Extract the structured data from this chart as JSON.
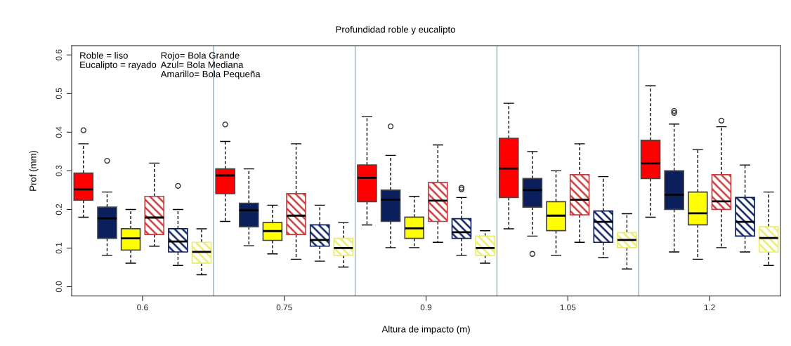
{
  "chart_data": {
    "type": "box",
    "title": "Profundidad roble y eucalipto",
    "xlabel": "Altura de impacto (m)",
    "ylabel": "Prof (mm)",
    "x": [
      0.6,
      0.75,
      0.9,
      1.05,
      1.2
    ],
    "xlim": [
      0.525,
      1.275
    ],
    "xticks": [
      0.6,
      0.75,
      0.9,
      1.05,
      1.2
    ],
    "ylim": [
      -0.024,
      0.624
    ],
    "yticks": [
      {
        "value": 0,
        "label": "0.0"
      },
      0.1,
      0.2,
      0.3,
      0.4,
      0.5,
      0.6
    ],
    "ref_lines": [
      {
        "axis": "x",
        "value": 0.675,
        "color": "#8db4cc"
      },
      {
        "axis": "x",
        "value": 0.825,
        "color": "#8db4cc"
      },
      {
        "axis": "x",
        "value": 0.975,
        "color": "#8db4cc"
      },
      {
        "axis": "x",
        "value": 1.125,
        "color": "#8db4cc"
      }
    ],
    "annotations": [
      "Roble = liso\nEucalipto = rayado",
      "Rojo= Bola Grande\nAzul= Bola Mediana\nAmarillo= Bola Pequeña"
    ],
    "series": [
      {
        "color": "#ff0000",
        "boxes": [
          {
            "low": 0.18,
            "q1": 0.224,
            "median": 0.252,
            "q3": 0.294,
            "high": 0.37,
            "outliers": [
              0.405
            ]
          },
          {
            "low": 0.169,
            "q1": 0.241,
            "median": 0.288,
            "q3": 0.305,
            "high": 0.376,
            "outliers": [
              0.42
            ]
          },
          {
            "low": 0.16,
            "q1": 0.22,
            "median": 0.282,
            "q3": 0.315,
            "high": 0.44
          },
          {
            "low": 0.15,
            "q1": 0.231,
            "median": 0.306,
            "q3": 0.384,
            "high": 0.475
          },
          {
            "low": 0.18,
            "q1": 0.28,
            "median": 0.319,
            "q3": 0.379,
            "high": 0.52
          }
        ]
      },
      {
        "color": "#0a1f5c",
        "boxes": [
          {
            "low": 0.081,
            "q1": 0.125,
            "median": 0.177,
            "q3": 0.206,
            "high": 0.245,
            "outliers": [
              0.326
            ]
          },
          {
            "low": 0.106,
            "q1": 0.155,
            "median": 0.198,
            "q3": 0.216,
            "high": 0.305
          },
          {
            "low": 0.101,
            "q1": 0.169,
            "median": 0.225,
            "q3": 0.25,
            "high": 0.34,
            "outliers": [
              0.415
            ]
          },
          {
            "low": 0.131,
            "q1": 0.206,
            "median": 0.25,
            "q3": 0.28,
            "high": 0.35,
            "outliers": [
              0.085
            ]
          },
          {
            "low": 0.09,
            "q1": 0.2,
            "median": 0.238,
            "q3": 0.3,
            "high": 0.421,
            "outliers": [
              0.45,
              0.455
            ]
          }
        ]
      },
      {
        "color": "#ffff00",
        "boxes": [
          {
            "low": 0.061,
            "q1": 0.095,
            "median": 0.125,
            "q3": 0.15,
            "high": 0.2
          },
          {
            "low": 0.085,
            "q1": 0.12,
            "median": 0.144,
            "q3": 0.166,
            "high": 0.211
          },
          {
            "low": 0.101,
            "q1": 0.125,
            "median": 0.151,
            "q3": 0.18,
            "high": 0.234
          },
          {
            "low": 0.081,
            "q1": 0.145,
            "median": 0.184,
            "q3": 0.22,
            "high": 0.3
          },
          {
            "low": 0.071,
            "q1": 0.16,
            "median": 0.19,
            "q3": 0.245,
            "high": 0.355
          }
        ]
      },
      {
        "color": "#c83c3c",
        "boxes": [
          {
            "low": 0.105,
            "q1": 0.135,
            "median": 0.179,
            "q3": 0.234,
            "high": 0.32
          },
          {
            "low": 0.071,
            "q1": 0.135,
            "median": 0.184,
            "q3": 0.241,
            "high": 0.37
          },
          {
            "low": 0.115,
            "q1": 0.169,
            "median": 0.223,
            "q3": 0.27,
            "high": 0.367
          },
          {
            "low": 0.115,
            "q1": 0.186,
            "median": 0.225,
            "q3": 0.29,
            "high": 0.37
          },
          {
            "low": 0.101,
            "q1": 0.2,
            "median": 0.221,
            "q3": 0.29,
            "high": 0.414,
            "outliers": [
              0.43
            ]
          }
        ]
      },
      {
        "color": "#0a1f5c",
        "boxes": [
          {
            "low": 0.055,
            "q1": 0.09,
            "median": 0.117,
            "q3": 0.15,
            "high": 0.2,
            "outliers": [
              0.261
            ]
          },
          {
            "low": 0.066,
            "q1": 0.105,
            "median": 0.121,
            "q3": 0.16,
            "high": 0.211
          },
          {
            "low": 0.081,
            "q1": 0.125,
            "median": 0.141,
            "q3": 0.176,
            "high": 0.231,
            "outliers": [
              0.252,
              0.256
            ]
          },
          {
            "low": 0.075,
            "q1": 0.115,
            "median": 0.168,
            "q3": 0.196,
            "high": 0.285
          },
          {
            "low": 0.09,
            "q1": 0.131,
            "median": 0.168,
            "q3": 0.231,
            "high": 0.315
          }
        ]
      },
      {
        "color": "#ecec6e",
        "boxes": [
          {
            "low": 0.031,
            "q1": 0.061,
            "median": 0.09,
            "q3": 0.115,
            "high": 0.15
          },
          {
            "low": 0.051,
            "q1": 0.081,
            "median": 0.1,
            "q3": 0.125,
            "high": 0.166
          },
          {
            "low": 0.061,
            "q1": 0.081,
            "median": 0.1,
            "q3": 0.131,
            "high": 0.145
          },
          {
            "low": 0.046,
            "q1": 0.101,
            "median": 0.121,
            "q3": 0.14,
            "high": 0.189
          },
          {
            "low": 0.055,
            "q1": 0.09,
            "median": 0.126,
            "q3": 0.155,
            "high": 0.245
          }
        ]
      }
    ]
  }
}
